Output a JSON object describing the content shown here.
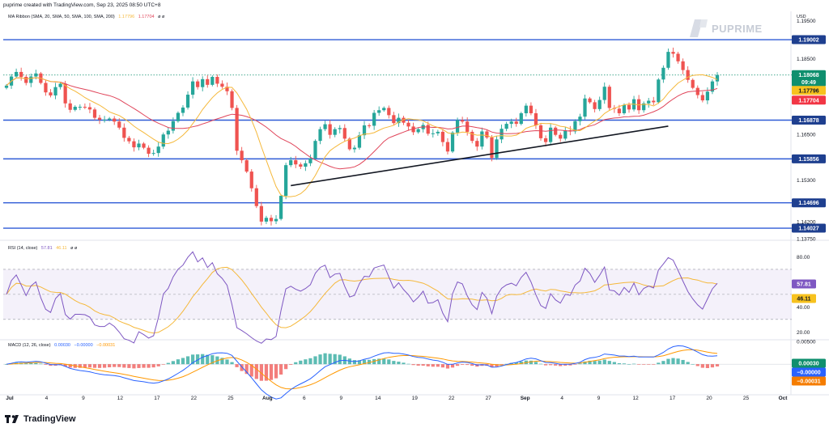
{
  "header": {
    "text": "puprime created with TradingView.com, Sep 23, 2025 08:50 UTC+8"
  },
  "currency": "USD",
  "brand": {
    "watermark": "PUPRIME",
    "footer_logo": "TradingView"
  },
  "price_legend": {
    "label": "MA Ribbon (SMA, 20, SMA, 50, SMA, 100, SMA, 200)",
    "v1": "1.17796",
    "v2": "1.17704",
    "suffix": "ø ø"
  },
  "rsi_legend": {
    "label": "RSI (14, close)",
    "v1": "57.81",
    "v2": "46.11",
    "suffix": "ø ø"
  },
  "macd_legend": {
    "label": "MACD (12, 26, close)",
    "v1": "0.00030",
    "v2": "−0.00000",
    "v3": "−0.00031"
  },
  "colors": {
    "up": "#26a69a",
    "down": "#ef5350",
    "ma_fast": "#f5b83a",
    "ma_slow": "#e0455a",
    "level": "#2f5bd6",
    "rsi": "#7e57c2",
    "macd": "#2962ff",
    "signal": "#ff9800",
    "tag_blue": "#1e3f8f",
    "tag_green": "#0f8f6e",
    "tag_yellow": "#f7c21e",
    "tag_red": "#f23645",
    "tag_purple": "#7e57c2",
    "tag_orange": "#f57c00"
  },
  "chart_data": [
    {
      "type": "candlestick",
      "title": "",
      "ylim": [
        1.1375,
        1.1975
      ],
      "y_ticks": [
        "1.19500",
        "1.18500",
        "1.16500",
        "1.15300",
        "1.14200",
        "1.13750"
      ],
      "x_labels": [
        "Jul",
        "4",
        "9",
        "12",
        "17",
        "22",
        "25",
        "Aug",
        "6",
        "9",
        "14",
        "19",
        "22",
        "27",
        "Sep",
        "4",
        "9",
        "12",
        "17",
        "20",
        "25",
        "Oct"
      ],
      "levels": [
        1.19002,
        1.16878,
        1.15856,
        1.14696,
        1.14027
      ],
      "level_labels": [
        "1.19002",
        "1.16878",
        "1.15856",
        "1.14696",
        "1.14027"
      ],
      "last_price": {
        "value": "1.18068",
        "countdown": "09:49"
      },
      "ma_labels": [
        "1.17796",
        "1.17704"
      ],
      "trendline": {
        "from": {
          "bar": 58,
          "price": 1.1515
        },
        "to": {
          "bar": 135,
          "price": 1.1672
        }
      },
      "closes": [
        1.1779,
        1.1803,
        1.1815,
        1.1802,
        1.1786,
        1.1803,
        1.1811,
        1.1786,
        1.1761,
        1.1753,
        1.1775,
        1.1784,
        1.1732,
        1.1715,
        1.1723,
        1.1723,
        1.1722,
        1.1716,
        1.1694,
        1.1689,
        1.1689,
        1.1692,
        1.1684,
        1.1668,
        1.1641,
        1.1632,
        1.1616,
        1.1626,
        1.1615,
        1.1599,
        1.1601,
        1.1618,
        1.165,
        1.166,
        1.1685,
        1.1707,
        1.1721,
        1.1755,
        1.179,
        1.1775,
        1.1796,
        1.1781,
        1.1802,
        1.1784,
        1.1776,
        1.1764,
        1.172,
        1.1607,
        1.1582,
        1.1552,
        1.1508,
        1.1461,
        1.142,
        1.143,
        1.1421,
        1.1427,
        1.1488,
        1.1569,
        1.1582,
        1.1571,
        1.1565,
        1.1574,
        1.1587,
        1.1633,
        1.1664,
        1.1677,
        1.1649,
        1.1664,
        1.1667,
        1.1639,
        1.1611,
        1.1615,
        1.1648,
        1.1674,
        1.1673,
        1.1707,
        1.1714,
        1.172,
        1.1701,
        1.168,
        1.1694,
        1.1681,
        1.1671,
        1.1656,
        1.1664,
        1.1675,
        1.1652,
        1.1653,
        1.1657,
        1.163,
        1.1605,
        1.1655,
        1.1688,
        1.1684,
        1.1657,
        1.1633,
        1.1618,
        1.1658,
        1.1642,
        1.1588,
        1.1637,
        1.1665,
        1.1678,
        1.1684,
        1.1678,
        1.1706,
        1.1726,
        1.1706,
        1.1674,
        1.164,
        1.163,
        1.1668,
        1.1649,
        1.1639,
        1.1661,
        1.1658,
        1.1685,
        1.1697,
        1.1745,
        1.1735,
        1.1717,
        1.1741,
        1.1776,
        1.172,
        1.1718,
        1.1706,
        1.1728,
        1.1716,
        1.1743,
        1.1714,
        1.1732,
        1.1739,
        1.1735,
        1.1795,
        1.1826,
        1.1868,
        1.1863,
        1.1843,
        1.182,
        1.1794,
        1.1773,
        1.1754,
        1.174,
        1.1763,
        1.179,
        1.1807
      ],
      "rsi": {
        "ylim": [
          15,
          90
        ],
        "ticks": [
          "80.00",
          "40.00",
          "20.00"
        ],
        "bands": [
          70,
          50,
          30
        ],
        "last": [
          "57.81",
          "46.11"
        ]
      },
      "macd": {
        "ylim": [
          -0.006,
          0.005
        ],
        "ticks": [
          "0.00500"
        ],
        "last": [
          "0.00030",
          "−0.00000",
          "−0.00031"
        ]
      }
    }
  ]
}
